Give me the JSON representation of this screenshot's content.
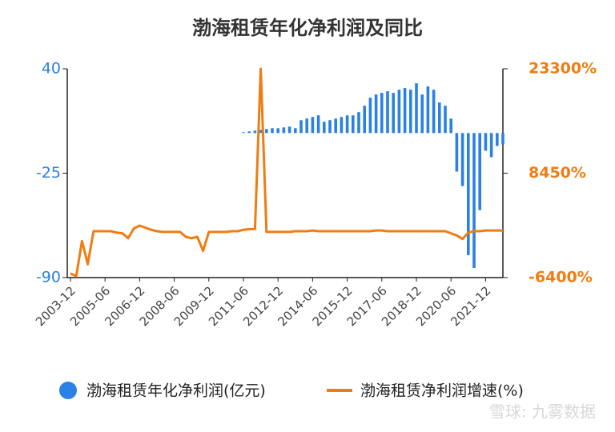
{
  "chart_data": {
    "type": "bar_line",
    "title": "渤海租赁年化净利润及同比",
    "watermark": "雪球: 九雾数据",
    "categories": [
      "2003-12",
      null,
      null,
      null,
      null,
      null,
      "2005-06",
      null,
      null,
      null,
      null,
      null,
      "2006-12",
      null,
      null,
      null,
      null,
      null,
      "2008-06",
      null,
      null,
      null,
      null,
      null,
      "2009-12",
      null,
      null,
      null,
      null,
      null,
      "2011-06",
      null,
      null,
      null,
      null,
      null,
      "2012-12",
      null,
      null,
      null,
      null,
      null,
      "2014-06",
      null,
      null,
      null,
      null,
      null,
      "2015-12",
      null,
      null,
      null,
      null,
      null,
      "2017-06",
      null,
      null,
      null,
      null,
      null,
      "2018-12",
      null,
      null,
      null,
      null,
      null,
      "2020-06",
      null,
      null,
      null,
      null,
      null,
      "2021-12",
      null,
      null,
      null
    ],
    "series": [
      {
        "name": "渤海租赁年化净利润(亿元)",
        "color": "#2a80e4",
        "type": "bar",
        "axis": "y",
        "values": [
          null,
          null,
          null,
          null,
          null,
          null,
          null,
          null,
          null,
          null,
          null,
          null,
          null,
          null,
          null,
          null,
          null,
          null,
          null,
          null,
          null,
          null,
          null,
          null,
          null,
          null,
          null,
          null,
          null,
          null,
          0.5,
          1,
          1.5,
          2,
          2.5,
          3,
          3,
          3.5,
          4,
          3,
          8,
          9,
          10,
          11,
          7,
          8,
          9,
          10,
          11,
          11,
          13,
          17,
          22,
          24,
          25,
          26,
          25,
          27,
          28,
          27,
          31,
          24,
          29,
          27,
          19,
          17,
          9,
          -24,
          -33,
          -76,
          -84,
          -48,
          -11,
          -15,
          -8,
          -7
        ]
      },
      {
        "name": "渤海租赁净利润增速(%)",
        "color": "#f07c12",
        "type": "line",
        "axis": "y2",
        "values": [
          -5800,
          -6200,
          -1200,
          -4500,
          200,
          200,
          200,
          200,
          0,
          -100,
          -800,
          600,
          1000,
          700,
          400,
          200,
          100,
          100,
          100,
          100,
          -600,
          -800,
          -600,
          -2600,
          100,
          100,
          100,
          100,
          200,
          200,
          400,
          500,
          500,
          23300,
          100,
          100,
          100,
          100,
          100,
          200,
          200,
          200,
          300,
          200,
          200,
          200,
          200,
          200,
          200,
          200,
          200,
          200,
          200,
          300,
          300,
          200,
          200,
          200,
          200,
          200,
          200,
          200,
          200,
          200,
          200,
          200,
          -100,
          -400,
          -900,
          0,
          200,
          200,
          300,
          300,
          300,
          300
        ]
      }
    ],
    "ylim": [
      -90,
      40
    ],
    "yticks": [
      -90,
      -25,
      40
    ],
    "y2lim": [
      -6400,
      23300
    ],
    "y2ticks": [
      {
        "value": -6400,
        "label": "-6400%"
      },
      {
        "value": 8450,
        "label": "8450%"
      },
      {
        "value": 23300,
        "label": "23300%"
      }
    ]
  }
}
